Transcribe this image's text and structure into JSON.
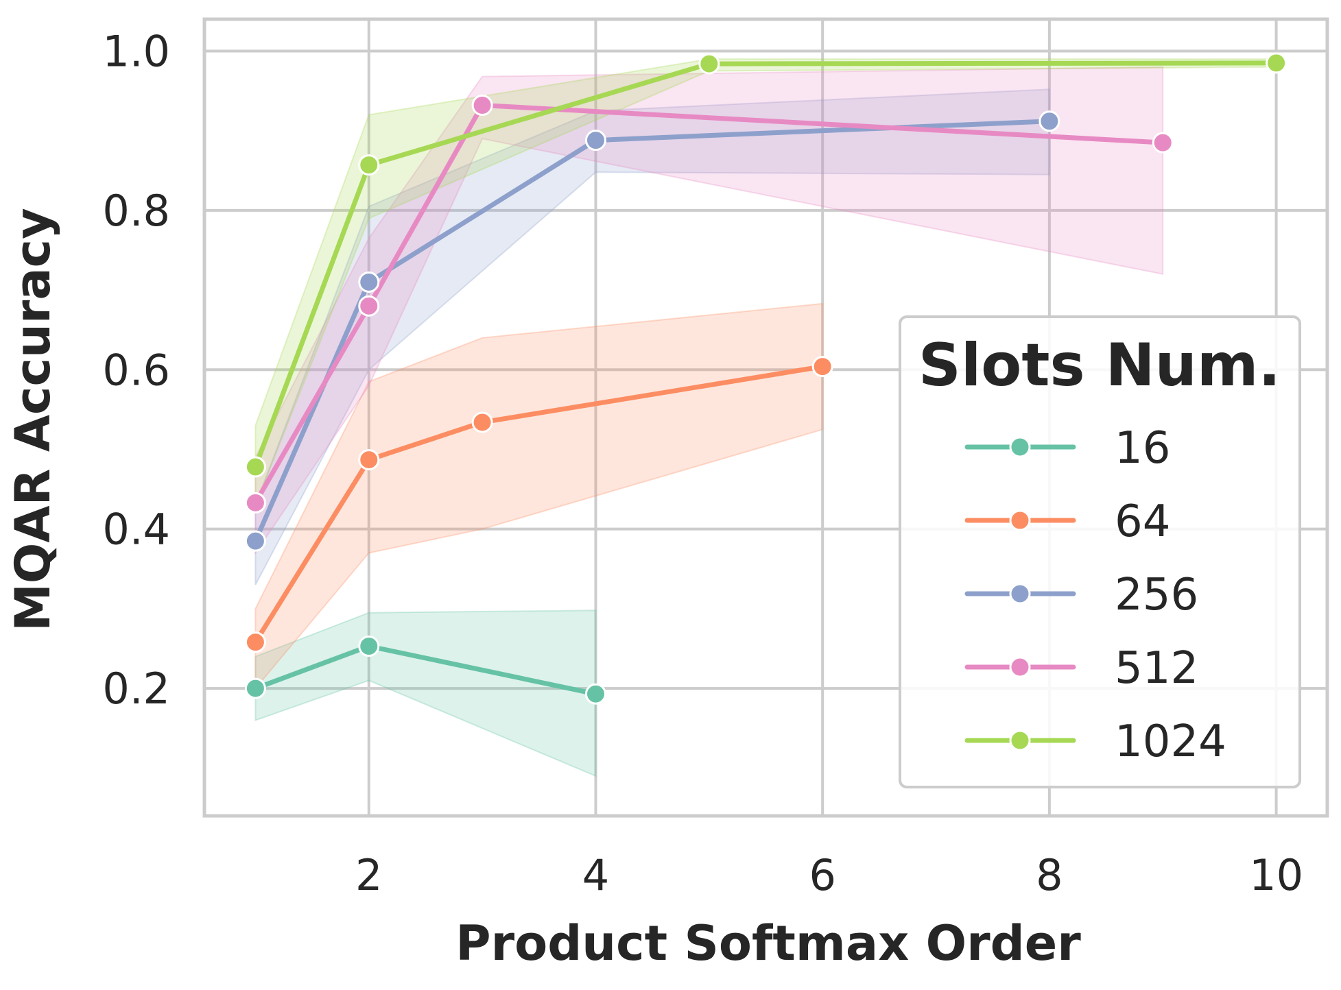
{
  "chart_data": {
    "type": "line",
    "title": "",
    "xlabel": "Product Softmax Order",
    "ylabel": "MQAR Accuracy",
    "xlim": [
      0.55,
      10.45
    ],
    "ylim": [
      0.04,
      1.04
    ],
    "xticks": [
      2,
      4,
      6,
      8,
      10
    ],
    "xtick_labels": [
      "2",
      "4",
      "6",
      "8",
      "10"
    ],
    "yticks": [
      0.2,
      0.4,
      0.6,
      0.8,
      1.0
    ],
    "ytick_labels": [
      "0.2",
      "0.4",
      "0.6",
      "0.8",
      "1.0"
    ],
    "grid": true,
    "legend": {
      "title": "Slots Num.",
      "placement": "lower-right"
    },
    "series": [
      {
        "name": "16",
        "color": "#66c2a5",
        "x": [
          1,
          2,
          4
        ],
        "y": [
          0.2,
          0.253,
          0.193
        ],
        "ci_low": [
          0.16,
          0.21,
          0.09
        ],
        "ci_high": [
          0.24,
          0.295,
          0.298
        ]
      },
      {
        "name": "64",
        "color": "#fc8d62",
        "x": [
          1,
          2,
          3,
          6
        ],
        "y": [
          0.258,
          0.487,
          0.534,
          0.604
        ],
        "ci_low": [
          0.2,
          0.37,
          0.4,
          0.525
        ],
        "ci_high": [
          0.3,
          0.585,
          0.64,
          0.683
        ]
      },
      {
        "name": "256",
        "color": "#8da0cb",
        "x": [
          1,
          2,
          4,
          8
        ],
        "y": [
          0.385,
          0.71,
          0.888,
          0.912
        ],
        "ci_low": [
          0.33,
          0.6,
          0.848,
          0.845
        ],
        "ci_high": [
          0.43,
          0.805,
          0.925,
          0.952
        ]
      },
      {
        "name": "512",
        "color": "#e78ac3",
        "x": [
          1,
          2,
          3,
          9
        ],
        "y": [
          0.433,
          0.68,
          0.932,
          0.885
        ],
        "ci_low": [
          0.37,
          0.58,
          0.89,
          0.72
        ],
        "ci_high": [
          0.49,
          0.765,
          0.968,
          0.98
        ]
      },
      {
        "name": "1024",
        "color": "#a6d854",
        "x": [
          1,
          2,
          5,
          10
        ],
        "y": [
          0.478,
          0.857,
          0.984,
          0.985
        ],
        "ci_low": [
          0.43,
          0.79,
          0.975,
          0.98
        ],
        "ci_high": [
          0.53,
          0.92,
          0.99,
          0.99
        ]
      }
    ]
  }
}
